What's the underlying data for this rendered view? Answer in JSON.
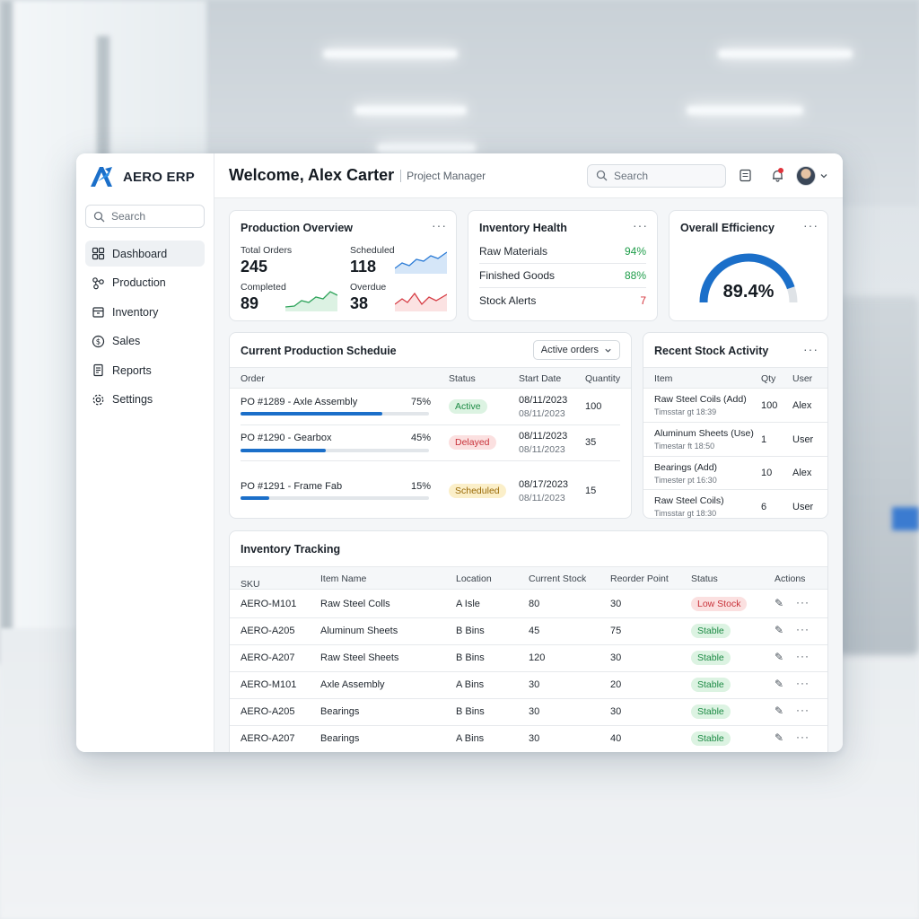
{
  "app": {
    "brand": "AERO ERP"
  },
  "sidebar": {
    "search_placeholder": "Search",
    "items": [
      {
        "label": "Dashboard",
        "icon": "grid-icon",
        "active": true
      },
      {
        "label": "Production",
        "icon": "nodes-icon"
      },
      {
        "label": "Inventory",
        "icon": "box-icon"
      },
      {
        "label": "Sales",
        "icon": "dollar-icon"
      },
      {
        "label": "Reports",
        "icon": "report-icon"
      },
      {
        "label": "Settings",
        "icon": "gear-icon"
      }
    ]
  },
  "header": {
    "welcome": "Welcome, Alex Carter",
    "role": "Project Manager",
    "search_placeholder": "Search"
  },
  "production_overview": {
    "title": "Production Overview",
    "stats": [
      {
        "label": "Total Orders",
        "value": "245"
      },
      {
        "label": "Scheduled",
        "value": "118"
      },
      {
        "label": "Completed",
        "value": "89"
      },
      {
        "label": "Overdue",
        "value": "38"
      }
    ]
  },
  "inventory_health": {
    "title": "Inventory Health",
    "rows": [
      {
        "label": "Raw Materials",
        "value": "94%"
      },
      {
        "label": "Finished Goods",
        "value": "88%"
      },
      {
        "label": "Stock Alerts",
        "value": "7"
      }
    ]
  },
  "efficiency": {
    "title": "Overall Efficiency",
    "value": "89.4%",
    "fraction": 0.894
  },
  "schedule": {
    "title": "Current Production Scheduie",
    "filter": "Active orders",
    "columns": [
      "Order",
      "Status",
      "Start Date",
      "Quantity"
    ],
    "rows": [
      {
        "order": "PO #1289 - Axle Assembly",
        "progress": "75%",
        "status": "Active",
        "date1": "08/11/2023",
        "date2": "08/11/2023",
        "qty": "100"
      },
      {
        "order": "PO #1290 - Gearbox",
        "progress": "45%",
        "status": "Delayed",
        "date1": "08/11/2023",
        "date2": "08/11/2023",
        "qty": "35"
      },
      {
        "order": "PO #1291 - Frame Fab",
        "progress": "15%",
        "status": "Scheduled",
        "date1": "08/17/2023",
        "date2": "08/11/2023",
        "qty": "15"
      }
    ]
  },
  "stock_activity": {
    "title": "Recent Stock Activity",
    "columns": [
      "Item",
      "Qty",
      "User"
    ],
    "rows": [
      {
        "item": "Raw Steel Coils (Add)",
        "time": "Timsstar gt 18:39",
        "qty": "100",
        "user": "Alex"
      },
      {
        "item": "Aluminum Sheets (Use)",
        "time": "Timestar ft 18:50",
        "qty": "1",
        "user": "User"
      },
      {
        "item": "Bearings (Add)",
        "time": "Timester pt 16:30",
        "qty": "10",
        "user": "Alex"
      },
      {
        "item": "Raw Steel Coils)",
        "time": "Timsstar gt 18:30",
        "qty": "6",
        "user": "User"
      }
    ]
  },
  "inventory_tracking": {
    "title": "Inventory Tracking",
    "columns": [
      "SKU",
      "Item Name",
      "Location",
      "Current Stock",
      "Reorder Point",
      "Status",
      "Actions"
    ],
    "rows": [
      {
        "sku": "AERO-M101",
        "name": "Raw Steel Colls",
        "loc": "A Isle",
        "stock": "80",
        "reorder": "30",
        "status": "Low Stock"
      },
      {
        "sku": "AERO-A205",
        "name": "Aluminum Sheets",
        "loc": "B Bins",
        "stock": "45",
        "reorder": "75",
        "status": "Stable"
      },
      {
        "sku": "AERO-A207",
        "name": "Raw Steel Sheets",
        "loc": "B Bins",
        "stock": "120",
        "reorder": "30",
        "status": "Stable"
      },
      {
        "sku": "AERO-M101",
        "name": "Axle Assembly",
        "loc": "A Bins",
        "stock": "30",
        "reorder": "20",
        "status": "Stable"
      },
      {
        "sku": "AERO-A205",
        "name": "Bearings",
        "loc": "B Bins",
        "stock": "30",
        "reorder": "30",
        "status": "Stable"
      },
      {
        "sku": "AERO-A207",
        "name": "Bearings",
        "loc": "A Bins",
        "stock": "30",
        "reorder": "40",
        "status": "Stable"
      }
    ]
  }
}
